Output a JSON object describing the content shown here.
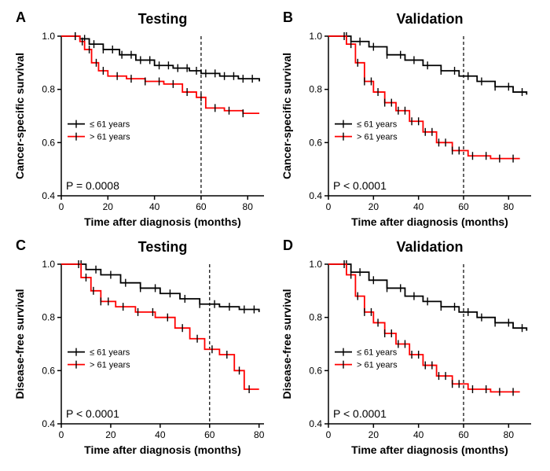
{
  "panels": [
    {
      "letter": "A",
      "title": "Testing",
      "ylabel": "Cancer-specific survival",
      "xlabel": "Time after diagnosis (months)",
      "ylim": [
        0.4,
        1.0
      ],
      "ytick_step": 0.2,
      "xlim": [
        0,
        80
      ],
      "xtick_step": 20,
      "vline_x": 60,
      "p_label": "P = 0.0008",
      "legend": {
        "a": "≤ 61 years",
        "b": "> 61 years"
      },
      "series": {
        "a": {
          "color": "#000000",
          "pts": [
            [
              0,
              1.0
            ],
            [
              5,
              1.0
            ],
            [
              8,
              0.99
            ],
            [
              12,
              0.97
            ],
            [
              18,
              0.95
            ],
            [
              25,
              0.93
            ],
            [
              32,
              0.91
            ],
            [
              40,
              0.89
            ],
            [
              48,
              0.88
            ],
            [
              55,
              0.87
            ],
            [
              60,
              0.86
            ],
            [
              68,
              0.85
            ],
            [
              76,
              0.84
            ],
            [
              85,
              0.83
            ]
          ],
          "ticks_x": [
            6,
            10,
            14,
            18,
            22,
            26,
            30,
            34,
            38,
            42,
            46,
            50,
            54,
            58,
            62,
            66,
            70,
            74,
            78,
            82
          ]
        },
        "b": {
          "color": "#ff0000",
          "pts": [
            [
              0,
              1.0
            ],
            [
              5,
              1.0
            ],
            [
              8,
              0.98
            ],
            [
              10,
              0.95
            ],
            [
              13,
              0.9
            ],
            [
              16,
              0.87
            ],
            [
              20,
              0.85
            ],
            [
              28,
              0.84
            ],
            [
              36,
              0.83
            ],
            [
              44,
              0.82
            ],
            [
              52,
              0.79
            ],
            [
              58,
              0.77
            ],
            [
              62,
              0.73
            ],
            [
              70,
              0.72
            ],
            [
              78,
              0.71
            ],
            [
              85,
              0.71
            ]
          ],
          "ticks_x": [
            6,
            9,
            12,
            15,
            18,
            24,
            30,
            36,
            42,
            48,
            54,
            60,
            66,
            72,
            78
          ]
        }
      }
    },
    {
      "letter": "B",
      "title": "Validation",
      "ylabel": "Cancer-specific survival",
      "xlabel": "Time after diagnosis (months)",
      "ylim": [
        0.4,
        1.0
      ],
      "ytick_step": 0.2,
      "xlim": [
        0,
        80
      ],
      "xtick_step": 20,
      "vline_x": 60,
      "p_label": "P < 0.0001",
      "legend": {
        "a": "≤ 61 years",
        "b": "> 61 years"
      },
      "series": {
        "a": {
          "color": "#000000",
          "pts": [
            [
              0,
              1.0
            ],
            [
              5,
              1.0
            ],
            [
              10,
              0.98
            ],
            [
              18,
              0.96
            ],
            [
              26,
              0.93
            ],
            [
              34,
              0.91
            ],
            [
              42,
              0.89
            ],
            [
              50,
              0.87
            ],
            [
              58,
              0.85
            ],
            [
              66,
              0.83
            ],
            [
              74,
              0.81
            ],
            [
              82,
              0.79
            ],
            [
              88,
              0.78
            ]
          ],
          "ticks_x": [
            8,
            14,
            20,
            26,
            32,
            38,
            44,
            50,
            56,
            62,
            68,
            74,
            80,
            86
          ]
        },
        "b": {
          "color": "#ff0000",
          "pts": [
            [
              0,
              1.0
            ],
            [
              5,
              1.0
            ],
            [
              8,
              0.97
            ],
            [
              12,
              0.9
            ],
            [
              16,
              0.83
            ],
            [
              20,
              0.79
            ],
            [
              25,
              0.75
            ],
            [
              30,
              0.72
            ],
            [
              36,
              0.68
            ],
            [
              42,
              0.64
            ],
            [
              48,
              0.6
            ],
            [
              55,
              0.57
            ],
            [
              62,
              0.55
            ],
            [
              72,
              0.54
            ],
            [
              85,
              0.54
            ]
          ],
          "ticks_x": [
            7,
            10,
            13,
            16,
            19,
            22,
            25,
            28,
            31,
            34,
            37,
            40,
            43,
            46,
            49,
            52,
            55,
            58,
            64,
            70,
            76,
            82
          ]
        }
      }
    },
    {
      "letter": "C",
      "title": "Testing",
      "ylabel": "Disease-free survival",
      "xlabel": "Time after diagnosis (months)",
      "ylim": [
        0.4,
        1.0
      ],
      "ytick_step": 0.2,
      "xlim": [
        0,
        80
      ],
      "xtick_step": 20,
      "vline_x": 60,
      "p_label": "P < 0.0001",
      "legend": {
        "a": "≤ 61 years",
        "b": "> 61 years"
      },
      "series": {
        "a": {
          "color": "#000000",
          "pts": [
            [
              0,
              1.0
            ],
            [
              5,
              1.0
            ],
            [
              10,
              0.98
            ],
            [
              16,
              0.96
            ],
            [
              24,
              0.93
            ],
            [
              32,
              0.91
            ],
            [
              40,
              0.89
            ],
            [
              48,
              0.87
            ],
            [
              56,
              0.85
            ],
            [
              64,
              0.84
            ],
            [
              72,
              0.83
            ],
            [
              80,
              0.82
            ]
          ],
          "ticks_x": [
            8,
            14,
            20,
            26,
            32,
            38,
            44,
            50,
            56,
            62,
            68,
            74,
            78
          ]
        },
        "b": {
          "color": "#ff0000",
          "pts": [
            [
              0,
              1.0
            ],
            [
              5,
              1.0
            ],
            [
              8,
              0.95
            ],
            [
              12,
              0.9
            ],
            [
              16,
              0.86
            ],
            [
              22,
              0.84
            ],
            [
              30,
              0.82
            ],
            [
              38,
              0.8
            ],
            [
              46,
              0.76
            ],
            [
              52,
              0.72
            ],
            [
              58,
              0.68
            ],
            [
              64,
              0.66
            ],
            [
              70,
              0.6
            ],
            [
              74,
              0.53
            ],
            [
              80,
              0.53
            ]
          ],
          "ticks_x": [
            7,
            10,
            13,
            16,
            19,
            25,
            31,
            37,
            43,
            49,
            55,
            61,
            67,
            72,
            76
          ]
        }
      }
    },
    {
      "letter": "D",
      "title": "Validation",
      "ylabel": "Disease-free survival",
      "xlabel": "Time after diagnosis (months)",
      "ylim": [
        0.4,
        1.0
      ],
      "ytick_step": 0.2,
      "xlim": [
        0,
        80
      ],
      "xtick_step": 20,
      "vline_x": 60,
      "p_label": "P < 0.0001",
      "legend": {
        "a": "≤ 61 years",
        "b": "> 61 years"
      },
      "series": {
        "a": {
          "color": "#000000",
          "pts": [
            [
              0,
              1.0
            ],
            [
              5,
              1.0
            ],
            [
              10,
              0.97
            ],
            [
              18,
              0.94
            ],
            [
              26,
              0.91
            ],
            [
              34,
              0.88
            ],
            [
              42,
              0.86
            ],
            [
              50,
              0.84
            ],
            [
              58,
              0.82
            ],
            [
              66,
              0.8
            ],
            [
              74,
              0.78
            ],
            [
              82,
              0.76
            ],
            [
              88,
              0.75
            ]
          ],
          "ticks_x": [
            8,
            14,
            20,
            26,
            32,
            38,
            44,
            50,
            56,
            62,
            68,
            74,
            80,
            86
          ]
        },
        "b": {
          "color": "#ff0000",
          "pts": [
            [
              0,
              1.0
            ],
            [
              5,
              1.0
            ],
            [
              8,
              0.96
            ],
            [
              12,
              0.88
            ],
            [
              16,
              0.82
            ],
            [
              20,
              0.78
            ],
            [
              25,
              0.74
            ],
            [
              30,
              0.7
            ],
            [
              36,
              0.66
            ],
            [
              42,
              0.62
            ],
            [
              48,
              0.58
            ],
            [
              55,
              0.55
            ],
            [
              62,
              0.53
            ],
            [
              72,
              0.52
            ],
            [
              85,
              0.52
            ]
          ],
          "ticks_x": [
            7,
            10,
            13,
            16,
            19,
            22,
            25,
            28,
            31,
            34,
            37,
            40,
            43,
            46,
            49,
            52,
            55,
            58,
            64,
            70,
            76,
            82
          ]
        }
      }
    }
  ],
  "style": {
    "title_fontsize": 18,
    "label_fontsize": 14,
    "tick_fontsize": 12,
    "legend_fontsize": 11,
    "pvalue_fontsize": 14,
    "panel_letter_fontsize": 18,
    "axis_color": "#000000",
    "axis_width": 1.5,
    "line_width": 1.8,
    "censor_tick_len": 5,
    "background": "#ffffff"
  }
}
